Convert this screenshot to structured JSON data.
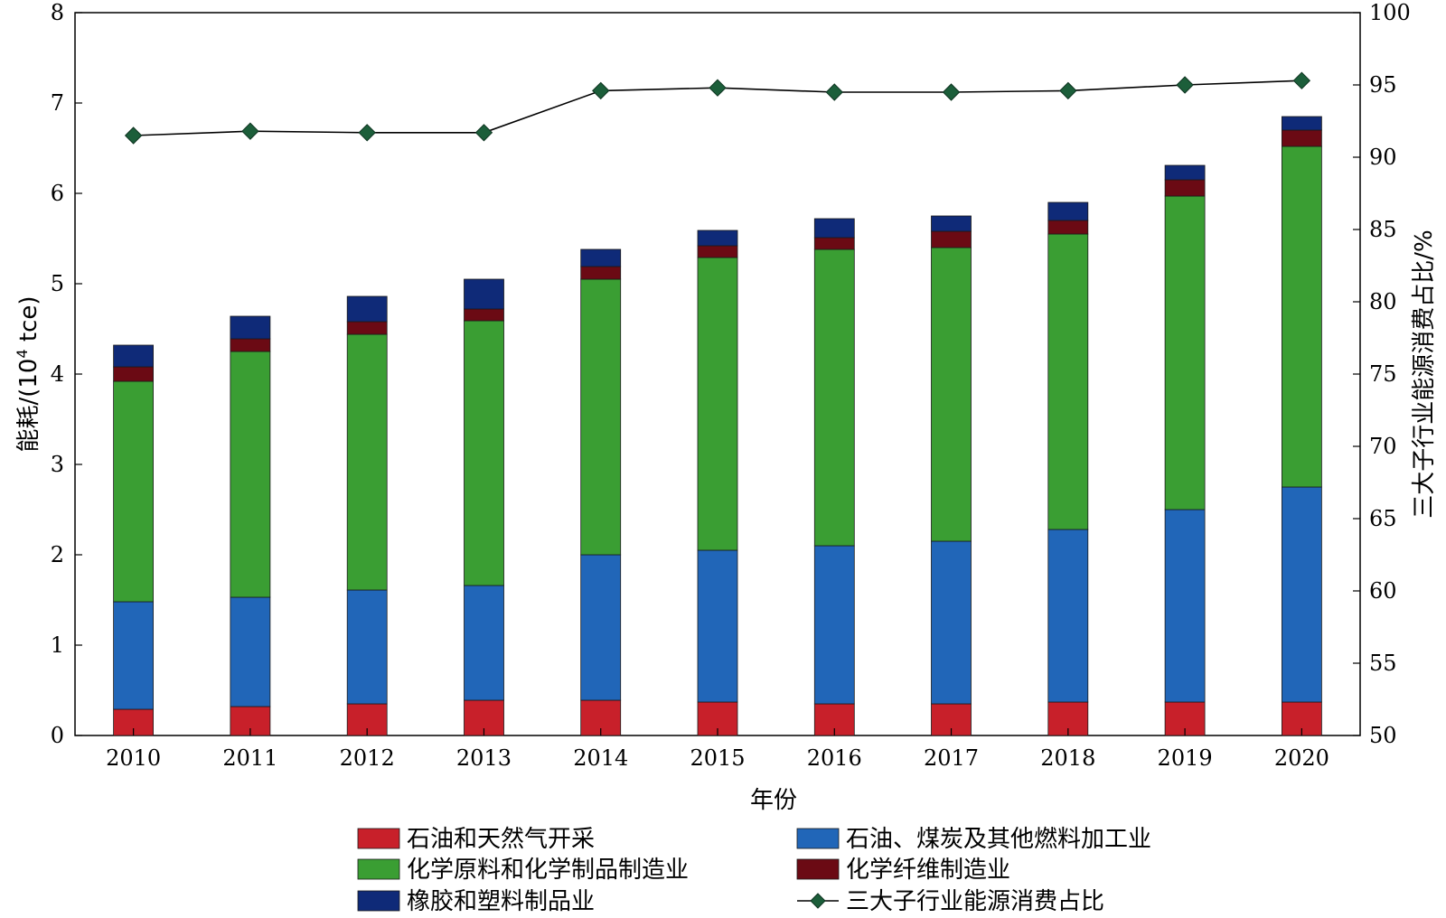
{
  "chart_data": {
    "type": "bar",
    "stacked": true,
    "xlabel": "年份",
    "ylabel_prefix": "能耗/(10",
    "ylabel_sup": "4",
    "ylabel_suffix": " tce)",
    "y2label": "三大子行业能源消费占比/%",
    "categories": [
      "2010",
      "2011",
      "2012",
      "2013",
      "2014",
      "2015",
      "2016",
      "2017",
      "2018",
      "2019",
      "2020"
    ],
    "ylim": [
      0,
      8
    ],
    "yticks": [
      "0",
      "1",
      "2",
      "3",
      "4",
      "5",
      "6",
      "7",
      "8"
    ],
    "y2lim": [
      50,
      100
    ],
    "y2ticks": [
      "50",
      "55",
      "60",
      "65",
      "70",
      "75",
      "80",
      "85",
      "90",
      "95",
      "100"
    ],
    "series": [
      {
        "name": "石油和天然气开采",
        "color": "#c8202a",
        "values": [
          0.29,
          0.32,
          0.35,
          0.39,
          0.39,
          0.37,
          0.35,
          0.35,
          0.37,
          0.37,
          0.37
        ]
      },
      {
        "name": "石油、煤炭及其他燃料加工业",
        "color": "#2166b8",
        "values": [
          1.19,
          1.21,
          1.26,
          1.27,
          1.61,
          1.68,
          1.75,
          1.8,
          1.91,
          2.13,
          2.38
        ]
      },
      {
        "name": "化学原料和化学制品制造业",
        "color": "#3a9e33",
        "values": [
          2.44,
          2.72,
          2.83,
          2.93,
          3.05,
          3.24,
          3.28,
          3.25,
          3.27,
          3.47,
          3.77
        ]
      },
      {
        "name": "化学纤维制造业",
        "color": "#6b0a14",
        "values": [
          0.16,
          0.14,
          0.14,
          0.13,
          0.14,
          0.13,
          0.13,
          0.18,
          0.15,
          0.18,
          0.18
        ]
      },
      {
        "name": "橡胶和塑料制品业",
        "color": "#0f2a78",
        "values": [
          0.24,
          0.25,
          0.28,
          0.33,
          0.19,
          0.17,
          0.21,
          0.17,
          0.2,
          0.16,
          0.15
        ]
      }
    ],
    "line_series": {
      "name": "三大子行业能源消费占比",
      "color": "#1c5e3a",
      "axis": "right",
      "values": [
        91.5,
        91.8,
        91.7,
        91.7,
        94.6,
        94.8,
        94.5,
        94.5,
        94.6,
        95.0,
        95.3
      ]
    },
    "legend_position": "bottom"
  }
}
